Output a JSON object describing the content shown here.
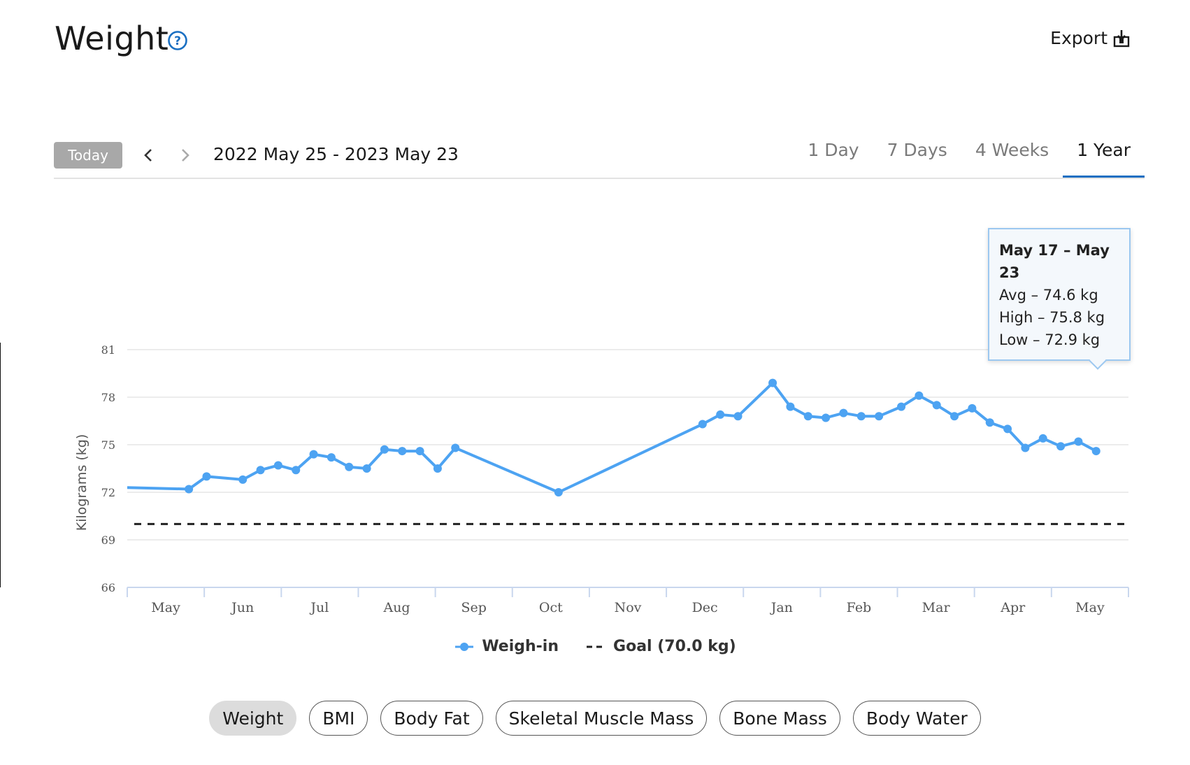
{
  "header": {
    "title": "Weight",
    "export_label": "Export"
  },
  "toolbar": {
    "today_label": "Today",
    "date_range": "2022 May 25 - 2023 May 23",
    "range_tabs": [
      {
        "label": "1 Day",
        "active": false
      },
      {
        "label": "7 Days",
        "active": false
      },
      {
        "label": "4 Weeks",
        "active": false
      },
      {
        "label": "1 Year",
        "active": true
      }
    ]
  },
  "tooltip": {
    "title": "May 17 – May 23",
    "avg": "Avg – 74.6 kg",
    "high": "High – 75.8 kg",
    "low": "Low – 72.9 kg"
  },
  "legend": {
    "weigh_in": "Weigh-in",
    "goal": "Goal (70.0 kg)"
  },
  "metric_tabs": [
    {
      "label": "Weight",
      "active": true
    },
    {
      "label": "BMI",
      "active": false
    },
    {
      "label": "Body Fat",
      "active": false
    },
    {
      "label": "Skeletal Muscle Mass",
      "active": false
    },
    {
      "label": "Bone Mass",
      "active": false
    },
    {
      "label": "Body Water",
      "active": false
    }
  ],
  "colors": {
    "series": "#4da3f2",
    "goal": "#222222",
    "accent": "#1a6fc2",
    "grid": "#e6e6e6"
  },
  "chart_data": {
    "type": "line",
    "ylabel": "Kilograms (kg)",
    "ylim": [
      66,
      81
    ],
    "yticks": [
      66,
      69,
      72,
      75,
      78,
      81
    ],
    "xlim": [
      0,
      13
    ],
    "month_labels": [
      "May",
      "Jun",
      "Jul",
      "Aug",
      "Sep",
      "Oct",
      "Nov",
      "Dec",
      "Jan",
      "Feb",
      "Mar",
      "Apr",
      "May"
    ],
    "goal": 70.0,
    "highlight_index": 52,
    "series": [
      {
        "name": "Weigh-in",
        "x": [
          0,
          0.8,
          1.03,
          1.5,
          1.73,
          1.96,
          2.19,
          2.42,
          2.65,
          2.88,
          3.11,
          3.34,
          3.57,
          3.8,
          4.03,
          4.26,
          5.6,
          7.47,
          7.7,
          7.93,
          8.38,
          8.61,
          8.84,
          9.07,
          9.3,
          9.53,
          9.76,
          10.05,
          10.28,
          10.51,
          10.74,
          10.97,
          11.2,
          11.43,
          11.66,
          11.89,
          12.12,
          12.35,
          12.58
        ],
        "y": [
          72.3,
          72.2,
          73.0,
          72.8,
          73.4,
          73.7,
          73.4,
          74.4,
          74.2,
          73.6,
          73.5,
          74.7,
          74.6,
          74.6,
          73.5,
          74.8,
          72.0,
          76.3,
          76.9,
          76.8,
          78.9,
          77.4,
          76.8,
          76.7,
          77.0,
          76.8,
          76.8,
          77.4,
          78.1,
          77.5,
          76.8,
          77.3,
          76.4,
          76.0,
          74.8,
          75.4,
          74.9,
          75.2,
          74.6
        ]
      }
    ]
  }
}
